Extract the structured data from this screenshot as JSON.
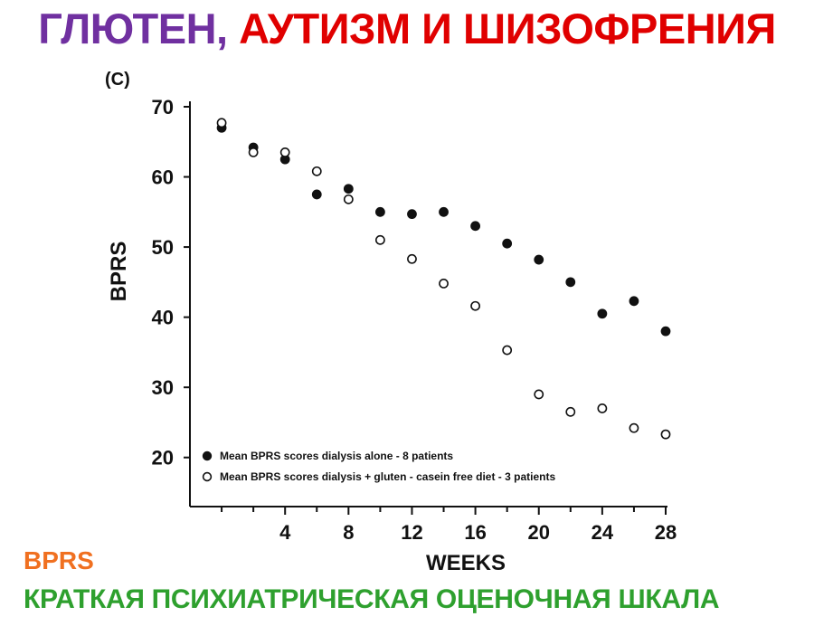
{
  "header": {
    "title_part1": "ГЛЮТЕН,",
    "title_part2": "АУТИЗМ И ШИЗОФРЕНИЯ",
    "color_part1": "#7030A0",
    "color_part2": "#E00000"
  },
  "footer": {
    "abbreviation": "BPRS",
    "abbreviation_color": "#F07020",
    "full_name": "КРАТКАЯ ПСИХИАТРИЧЕСКАЯ ОЦЕНОЧНАЯ ШКАЛА",
    "full_name_color": "#2EA02E"
  },
  "chart_data": {
    "type": "scatter",
    "panel_label": "(C)",
    "xlabel": "WEEKS",
    "ylabel": "BPRS",
    "xlim": [
      -2,
      28
    ],
    "ylim": [
      13,
      70
    ],
    "xticks": [
      4,
      8,
      12,
      16,
      20,
      24,
      28
    ],
    "yticks": [
      20,
      30,
      40,
      50,
      60,
      70
    ],
    "legend_position": "bottom-left",
    "grid": false,
    "series": [
      {
        "name": "Mean BPRS scores dialysis alone - 8 patients",
        "marker": "filled-circle",
        "x": [
          0,
          2,
          4,
          6,
          8,
          10,
          12,
          14,
          16,
          18,
          20,
          22,
          24,
          26,
          28
        ],
        "y": [
          67,
          64.2,
          62.5,
          57.5,
          58.3,
          55,
          54.7,
          55,
          53,
          50.5,
          48.2,
          45,
          40.5,
          42.3,
          38
        ]
      },
      {
        "name": "Mean BPRS scores dialysis + gluten - casein free diet - 3 patients",
        "marker": "open-circle",
        "x": [
          0,
          2,
          4,
          6,
          8,
          10,
          12,
          14,
          16,
          18,
          20,
          22,
          24,
          26,
          28
        ],
        "y": [
          67.7,
          63.5,
          63.5,
          60.8,
          56.8,
          51,
          48.3,
          44.8,
          41.6,
          35.3,
          29,
          26.5,
          27,
          24.2,
          23.3
        ]
      }
    ]
  }
}
